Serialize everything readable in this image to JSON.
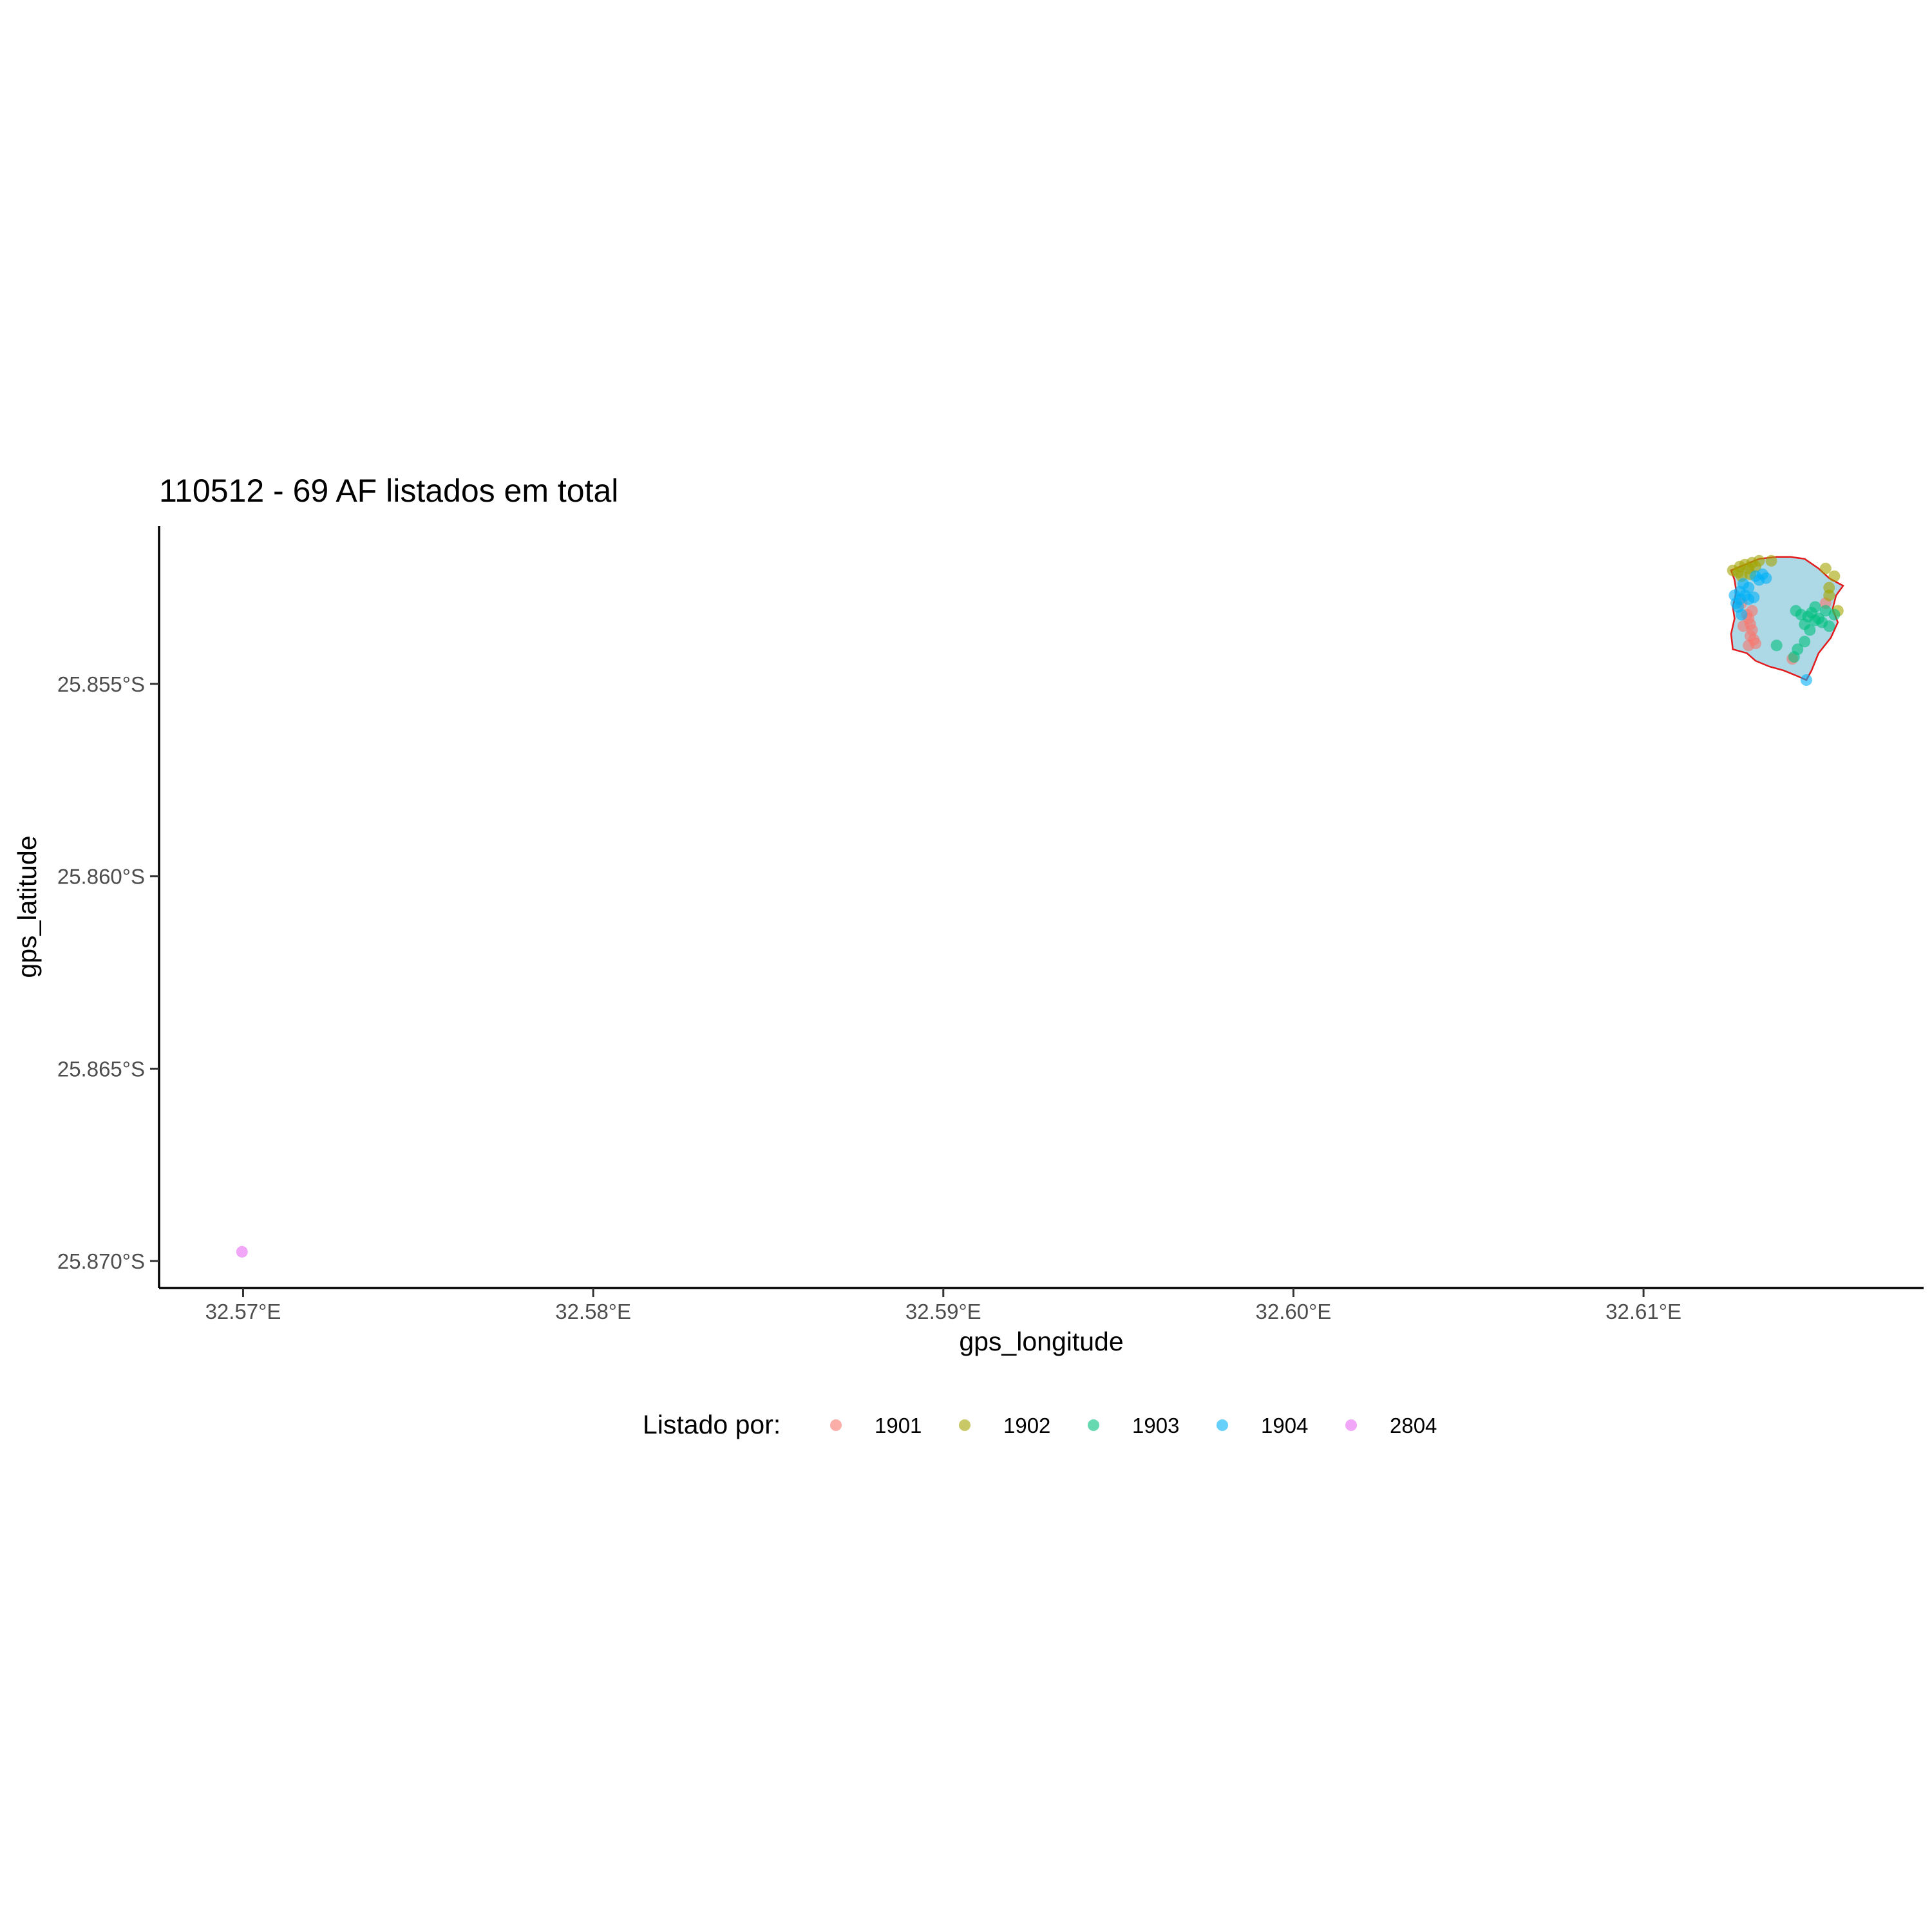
{
  "chart_data": {
    "type": "scatter",
    "title": "110512 - 69 AF listados em total",
    "xlabel": "gps_longitude",
    "ylabel": "gps_latitude",
    "xlim": [
      32.5676,
      32.618
    ],
    "ylim": [
      -25.8707,
      -25.8509
    ],
    "x_ticks": [
      {
        "value": 32.57,
        "label": "32.57°E"
      },
      {
        "value": 32.58,
        "label": "32.58°E"
      },
      {
        "value": 32.59,
        "label": "32.59°E"
      },
      {
        "value": 32.6,
        "label": "32.60°E"
      },
      {
        "value": 32.61,
        "label": "32.61°E"
      }
    ],
    "y_ticks": [
      {
        "value": -25.855,
        "label": "25.855°S"
      },
      {
        "value": -25.86,
        "label": "25.860°S"
      },
      {
        "value": -25.865,
        "label": "25.865°S"
      },
      {
        "value": -25.87,
        "label": "25.870°S"
      }
    ],
    "grid": false,
    "legend": {
      "title": "Listado por:",
      "placement": "bottom"
    },
    "polygon": {
      "fill": "#add8e6",
      "stroke": "#e31a1c",
      "points": [
        [
          32.6125,
          -25.85205
        ],
        [
          32.6129,
          -25.8519
        ],
        [
          32.6133,
          -25.85175
        ],
        [
          32.6138,
          -25.8517
        ],
        [
          32.6142,
          -25.8517
        ],
        [
          32.6146,
          -25.85175
        ],
        [
          32.615,
          -25.852
        ],
        [
          32.6153,
          -25.85225
        ],
        [
          32.6157,
          -25.85245
        ],
        [
          32.6155,
          -25.8527
        ],
        [
          32.6154,
          -25.85305
        ],
        [
          32.61555,
          -25.8534
        ],
        [
          32.61535,
          -25.8538
        ],
        [
          32.615,
          -25.8542
        ],
        [
          32.6148,
          -25.85465
        ],
        [
          32.61465,
          -25.8549
        ],
        [
          32.6144,
          -25.8548
        ],
        [
          32.614,
          -25.85465
        ],
        [
          32.6136,
          -25.85455
        ],
        [
          32.6132,
          -25.8544
        ],
        [
          32.61295,
          -25.8542
        ],
        [
          32.61255,
          -25.8541
        ],
        [
          32.6125,
          -25.8537
        ],
        [
          32.6126,
          -25.8533
        ],
        [
          32.61255,
          -25.853
        ],
        [
          32.61265,
          -25.8526
        ],
        [
          32.6126,
          -25.8523
        ]
      ]
    },
    "series": [
      {
        "name": "1901",
        "color": "#f8766d",
        "points": [
          [
            32.613,
            -25.8533
          ],
          [
            32.61305,
            -25.85345
          ],
          [
            32.6131,
            -25.8536
          ],
          [
            32.61305,
            -25.85375
          ],
          [
            32.61315,
            -25.85385
          ],
          [
            32.6132,
            -25.85395
          ],
          [
            32.613,
            -25.854
          ],
          [
            32.6131,
            -25.8531
          ],
          [
            32.61295,
            -25.8532
          ],
          [
            32.61285,
            -25.8535
          ],
          [
            32.6128,
            -25.8529
          ],
          [
            32.6152,
            -25.8529
          ],
          [
            32.61425,
            -25.85435
          ]
        ]
      },
      {
        "name": "1902",
        "color": "#a3a500",
        "points": [
          [
            32.61255,
            -25.85205
          ],
          [
            32.61275,
            -25.85195
          ],
          [
            32.6129,
            -25.8519
          ],
          [
            32.6131,
            -25.85185
          ],
          [
            32.6133,
            -25.8518
          ],
          [
            32.6127,
            -25.8521
          ],
          [
            32.613,
            -25.852
          ],
          [
            32.6132,
            -25.85195
          ],
          [
            32.6128,
            -25.8522
          ],
          [
            32.61305,
            -25.85215
          ],
          [
            32.61365,
            -25.8518
          ],
          [
            32.6152,
            -25.852
          ],
          [
            32.61545,
            -25.8522
          ],
          [
            32.6153,
            -25.8525
          ],
          [
            32.61555,
            -25.8531
          ],
          [
            32.6153,
            -25.8527
          ]
        ]
      },
      {
        "name": "1903",
        "color": "#00bf7d",
        "points": [
          [
            32.6138,
            -25.854
          ],
          [
            32.61435,
            -25.8531
          ],
          [
            32.6145,
            -25.8532
          ],
          [
            32.6147,
            -25.85325
          ],
          [
            32.6148,
            -25.85315
          ],
          [
            32.6149,
            -25.853
          ],
          [
            32.615,
            -25.8533
          ],
          [
            32.6152,
            -25.8531
          ],
          [
            32.61545,
            -25.8532
          ],
          [
            32.6153,
            -25.8535
          ],
          [
            32.61475,
            -25.8536
          ],
          [
            32.6146,
            -25.8539
          ],
          [
            32.6144,
            -25.8541
          ],
          [
            32.6143,
            -25.8543
          ],
          [
            32.6146,
            -25.85345
          ],
          [
            32.6151,
            -25.8534
          ],
          [
            32.6149,
            -25.85335
          ]
        ]
      },
      {
        "name": "1904",
        "color": "#00b0f6",
        "points": [
          [
            32.6126,
            -25.8527
          ],
          [
            32.61275,
            -25.8526
          ],
          [
            32.6129,
            -25.8527
          ],
          [
            32.613,
            -25.8528
          ],
          [
            32.61315,
            -25.85275
          ],
          [
            32.6127,
            -25.853
          ],
          [
            32.61285,
            -25.8524
          ],
          [
            32.6132,
            -25.8522
          ],
          [
            32.6134,
            -25.85215
          ],
          [
            32.6135,
            -25.85225
          ],
          [
            32.6133,
            -25.8523
          ],
          [
            32.61265,
            -25.8529
          ],
          [
            32.61275,
            -25.8528
          ],
          [
            32.613,
            -25.8525
          ],
          [
            32.61465,
            -25.8549
          ],
          [
            32.6128,
            -25.8532
          ]
        ]
      },
      {
        "name": "2804",
        "color": "#e76bf3",
        "points": [
          [
            32.56997,
            -25.86976
          ]
        ]
      }
    ]
  }
}
